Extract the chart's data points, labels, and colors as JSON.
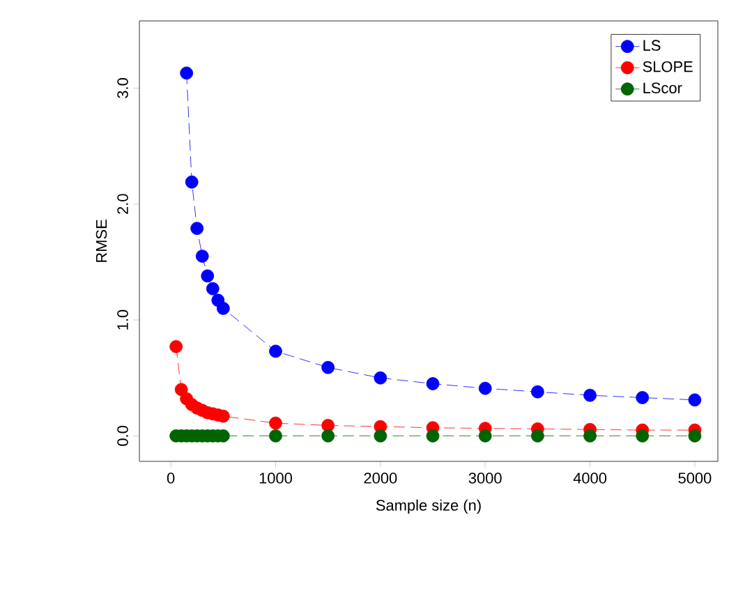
{
  "chart_data": {
    "type": "line",
    "xlabel": "Sample size (n)",
    "ylabel": "RMSE",
    "xlim": [
      -300,
      5220
    ],
    "ylim": [
      -0.22,
      3.58
    ],
    "xticks": [
      0,
      1000,
      2000,
      3000,
      4000,
      5000
    ],
    "yticks": [
      {
        "value": 0,
        "label": "0.0"
      },
      {
        "value": 1,
        "label": "1.0"
      },
      {
        "value": 2,
        "label": "2.0"
      },
      {
        "value": 3,
        "label": "3.0"
      }
    ],
    "grid": false,
    "legend": "top right",
    "marker": "circle",
    "line_style": "dashed",
    "series": [
      {
        "name": "LS",
        "color": "#0000ff",
        "x": [
          150,
          200,
          250,
          300,
          350,
          400,
          450,
          500,
          1000,
          1500,
          2000,
          2500,
          3000,
          3500,
          4000,
          4500,
          5000
        ],
        "values": [
          3.13,
          2.19,
          1.79,
          1.55,
          1.38,
          1.27,
          1.17,
          1.1,
          0.73,
          0.59,
          0.5,
          0.45,
          0.41,
          0.38,
          0.35,
          0.33,
          0.31
        ]
      },
      {
        "name": "SLOPE",
        "color": "#ff0000",
        "x": [
          50,
          100,
          150,
          200,
          250,
          300,
          350,
          400,
          450,
          500,
          1000,
          1500,
          2000,
          2500,
          3000,
          3500,
          4000,
          4500,
          5000
        ],
        "values": [
          0.77,
          0.4,
          0.32,
          0.27,
          0.24,
          0.22,
          0.2,
          0.19,
          0.18,
          0.17,
          0.11,
          0.09,
          0.08,
          0.07,
          0.065,
          0.06,
          0.055,
          0.05,
          0.05
        ]
      },
      {
        "name": "LScor",
        "color": "#006400",
        "x": [
          50,
          100,
          150,
          200,
          250,
          300,
          350,
          400,
          450,
          500,
          1000,
          1500,
          2000,
          2500,
          3000,
          3500,
          4000,
          4500,
          5000
        ],
        "values": [
          0,
          0,
          0,
          0,
          0,
          0,
          0,
          0,
          0,
          0,
          0,
          0,
          0,
          0,
          0,
          0,
          0,
          0,
          0
        ]
      }
    ]
  }
}
